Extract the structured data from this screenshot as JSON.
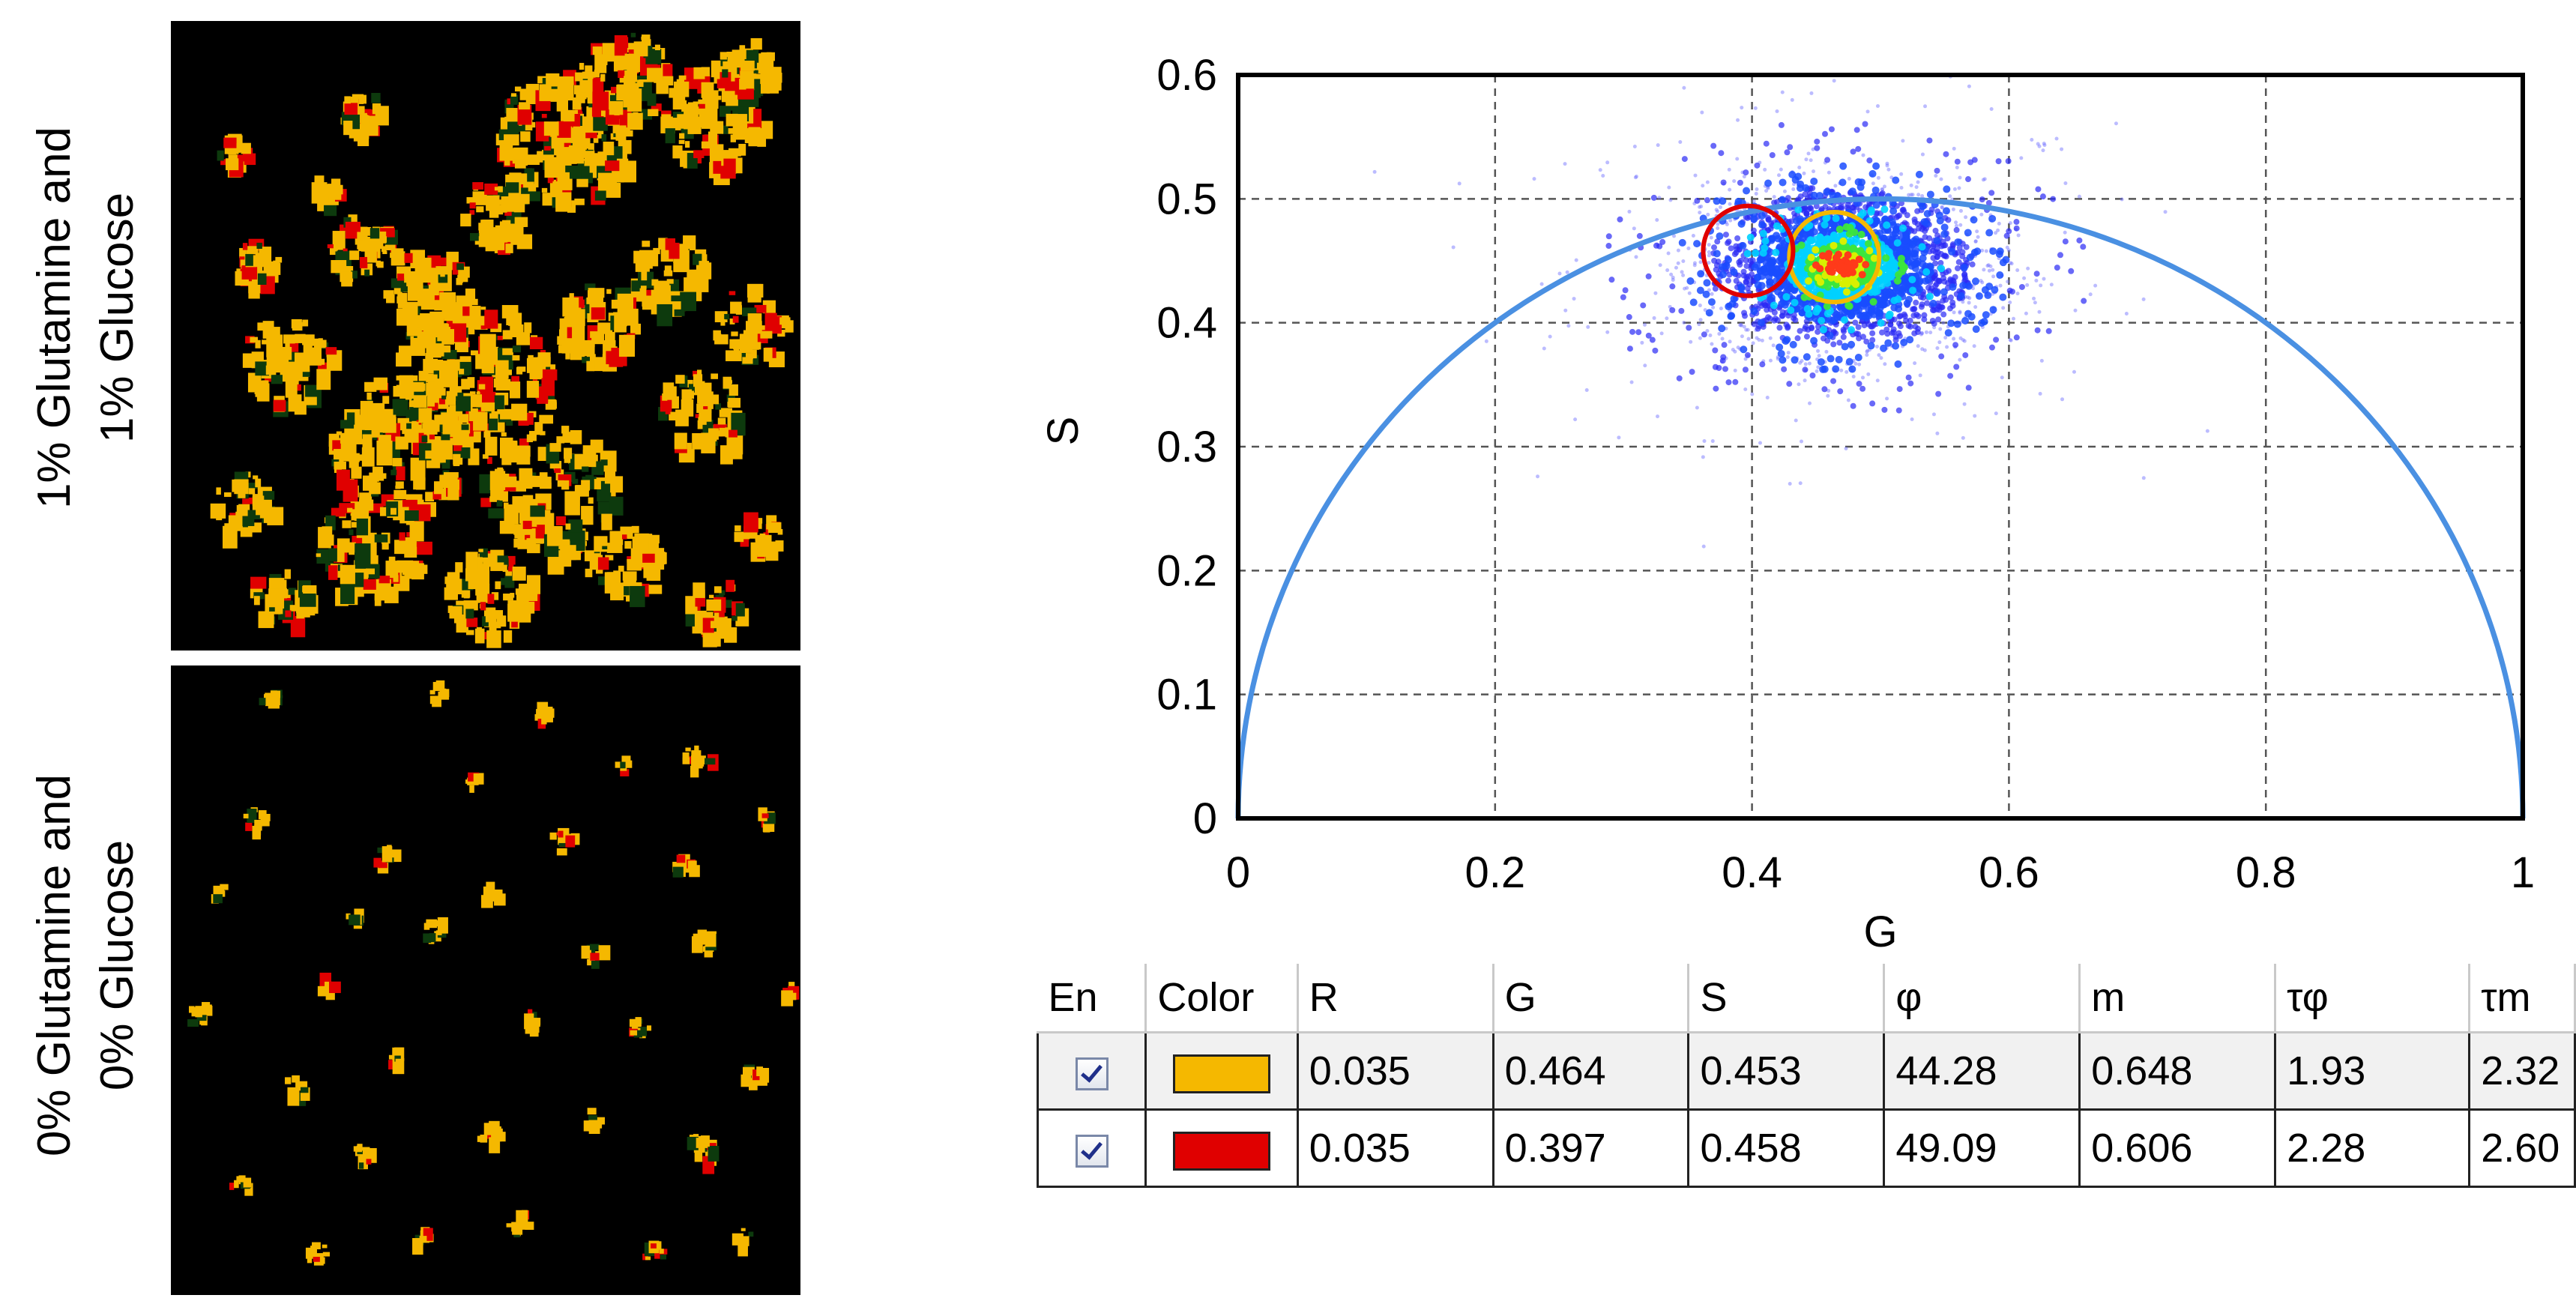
{
  "panels": [
    {
      "label_lines": [
        "1% Glutamine and",
        "1% Glucose"
      ]
    },
    {
      "label_lines": [
        "0% Glutamine and",
        "0% Glucose"
      ]
    }
  ],
  "chart_data": {
    "type": "scatter",
    "title": "",
    "xlabel": "G",
    "ylabel": "S",
    "xlim": [
      0,
      1
    ],
    "ylim": [
      0,
      0.6
    ],
    "xticks": [
      0,
      0.2,
      0.4,
      0.6,
      0.8,
      1
    ],
    "xtick_labels": [
      "0",
      "0.2",
      "0.4",
      "0.6",
      "0.8",
      "1"
    ],
    "yticks": [
      0,
      0.1,
      0.2,
      0.3,
      0.4,
      0.5,
      0.6
    ],
    "ytick_labels": [
      "0",
      "0.1",
      "0.2",
      "0.3",
      "0.4",
      "0.5",
      "0.6"
    ],
    "grid": true,
    "universal_circle": {
      "center": [
        0.5,
        0
      ],
      "radius": 0.5,
      "color": "#4a90e2"
    },
    "density_cloud": {
      "center": [
        0.47,
        0.445
      ],
      "spread_g": 0.055,
      "spread_s": 0.035
    },
    "cursors": [
      {
        "g": 0.464,
        "s": 0.453,
        "r": 0.035,
        "color": "#f5b800"
      },
      {
        "g": 0.397,
        "s": 0.458,
        "r": 0.035,
        "color": "#e00000"
      }
    ]
  },
  "table": {
    "columns": [
      "En",
      "Color",
      "R",
      "G",
      "S",
      "φ",
      "m",
      "τφ",
      "τm"
    ],
    "rows": [
      {
        "enabled": true,
        "color": "#f5b800",
        "cells": [
          "0.035",
          "0.464",
          "0.453",
          "44.28",
          "0.648",
          "1.93",
          "2.32"
        ]
      },
      {
        "enabled": true,
        "color": "#e00000",
        "cells": [
          "0.035",
          "0.397",
          "0.458",
          "49.09",
          "0.606",
          "2.28",
          "2.60"
        ]
      }
    ]
  },
  "colors": {
    "yellow": "#f5b800",
    "red": "#e00000",
    "dark_green": "#0d3a0d"
  }
}
